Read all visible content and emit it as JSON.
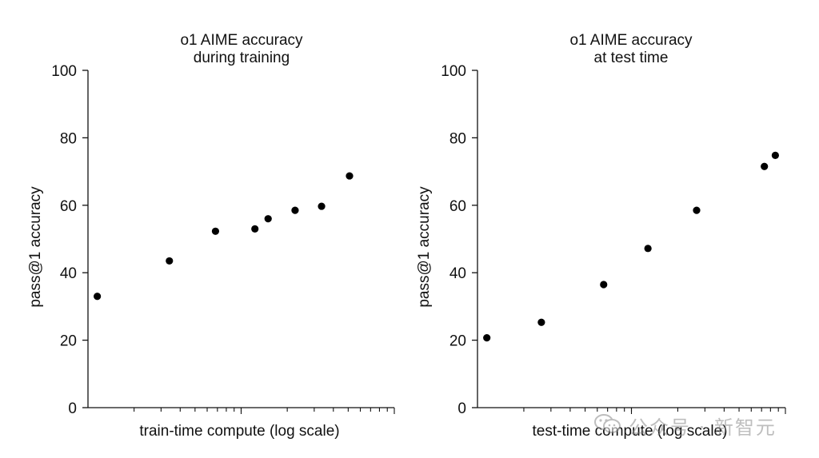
{
  "chart_data": [
    {
      "type": "scatter",
      "title": "o1 AIME accuracy\nduring training",
      "xlabel": "train-time compute (log scale)",
      "ylabel": "pass@1 accuracy",
      "xscale": "log",
      "ylim": [
        0,
        100
      ],
      "yticks": [
        0,
        20,
        40,
        60,
        80,
        100
      ],
      "x_tick_labels": "none",
      "marker_color": "#000000",
      "series": [
        {
          "x": [
            1.15,
            3.4,
            6.8,
            12.3,
            15.0,
            22.5,
            33.5,
            51.0
          ],
          "y": [
            33,
            43.5,
            52.3,
            53,
            56,
            58.5,
            59.7,
            68.7
          ]
        }
      ]
    },
    {
      "type": "scatter",
      "title": "o1 AIME accuracy\nat test time",
      "xlabel": "test-time compute (log scale)",
      "ylabel": "pass@1 accuracy",
      "xscale": "log",
      "ylim": [
        0,
        100
      ],
      "yticks": [
        0,
        20,
        40,
        60,
        80,
        100
      ],
      "x_tick_labels": "none",
      "marker_color": "#000000",
      "series": [
        {
          "x": [
            1.15,
            2.6,
            6.6,
            12.8,
            26.5,
            73.0,
            86.0
          ],
          "y": [
            20.7,
            25.3,
            36.5,
            47.2,
            58.5,
            71.5,
            74.8
          ]
        }
      ]
    }
  ],
  "watermark": {
    "text": "公众号 · 新智元",
    "icon": "wechat-icon"
  }
}
